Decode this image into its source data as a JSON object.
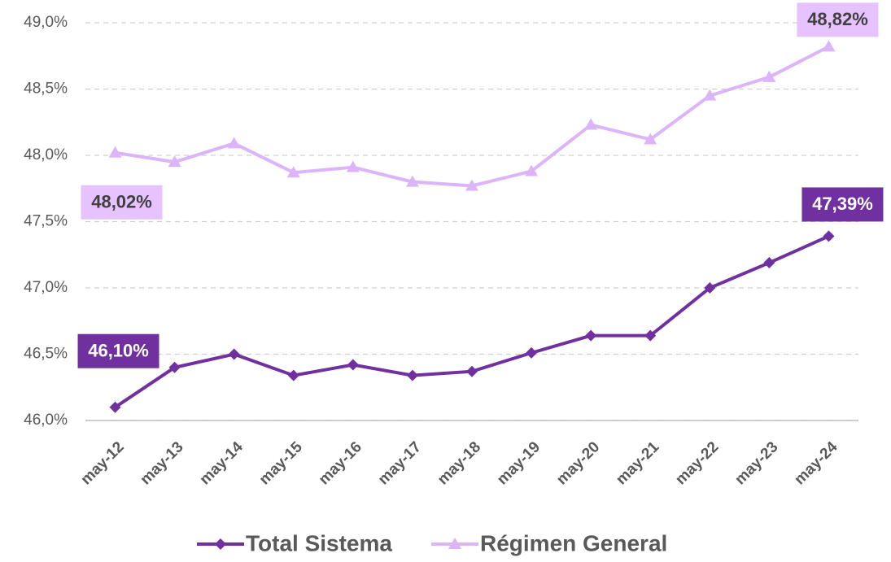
{
  "chart_data": {
    "type": "line",
    "categories": [
      "may-12",
      "may-13",
      "may-14",
      "may-15",
      "may-16",
      "may-17",
      "may-18",
      "may-19",
      "may-20",
      "may-21",
      "may-22",
      "may-23",
      "may-24"
    ],
    "series": [
      {
        "name": "Total Sistema",
        "color": "#7030a0",
        "marker": "diamond",
        "values": [
          46.1,
          46.4,
          46.5,
          46.34,
          46.42,
          46.34,
          46.37,
          46.51,
          46.64,
          46.64,
          47.0,
          47.19,
          47.39
        ],
        "value_labels": [
          "46,10%",
          null,
          null,
          null,
          null,
          null,
          null,
          null,
          null,
          null,
          null,
          null,
          "47,39%"
        ]
      },
      {
        "name": "Régimen General",
        "color": "#dcb4fa",
        "marker": "triangle",
        "values": [
          48.02,
          47.95,
          48.09,
          47.87,
          47.91,
          47.8,
          47.77,
          47.88,
          48.23,
          48.12,
          48.45,
          48.59,
          48.82
        ],
        "value_labels": [
          "48,02%",
          null,
          null,
          null,
          null,
          null,
          null,
          null,
          null,
          null,
          null,
          null,
          "48,82%"
        ]
      }
    ],
    "ylim": [
      46.0,
      49.0
    ],
    "yticks": [
      {
        "value": 46.0,
        "label": "46,0%"
      },
      {
        "value": 46.5,
        "label": "46,5%"
      },
      {
        "value": 47.0,
        "label": "47,0%"
      },
      {
        "value": 47.5,
        "label": "47,5%"
      },
      {
        "value": 48.0,
        "label": "48,0%"
      },
      {
        "value": 48.5,
        "label": "48,5%"
      },
      {
        "value": 49.0,
        "label": "49,0%"
      }
    ],
    "grid": true,
    "legend": "bottom"
  }
}
